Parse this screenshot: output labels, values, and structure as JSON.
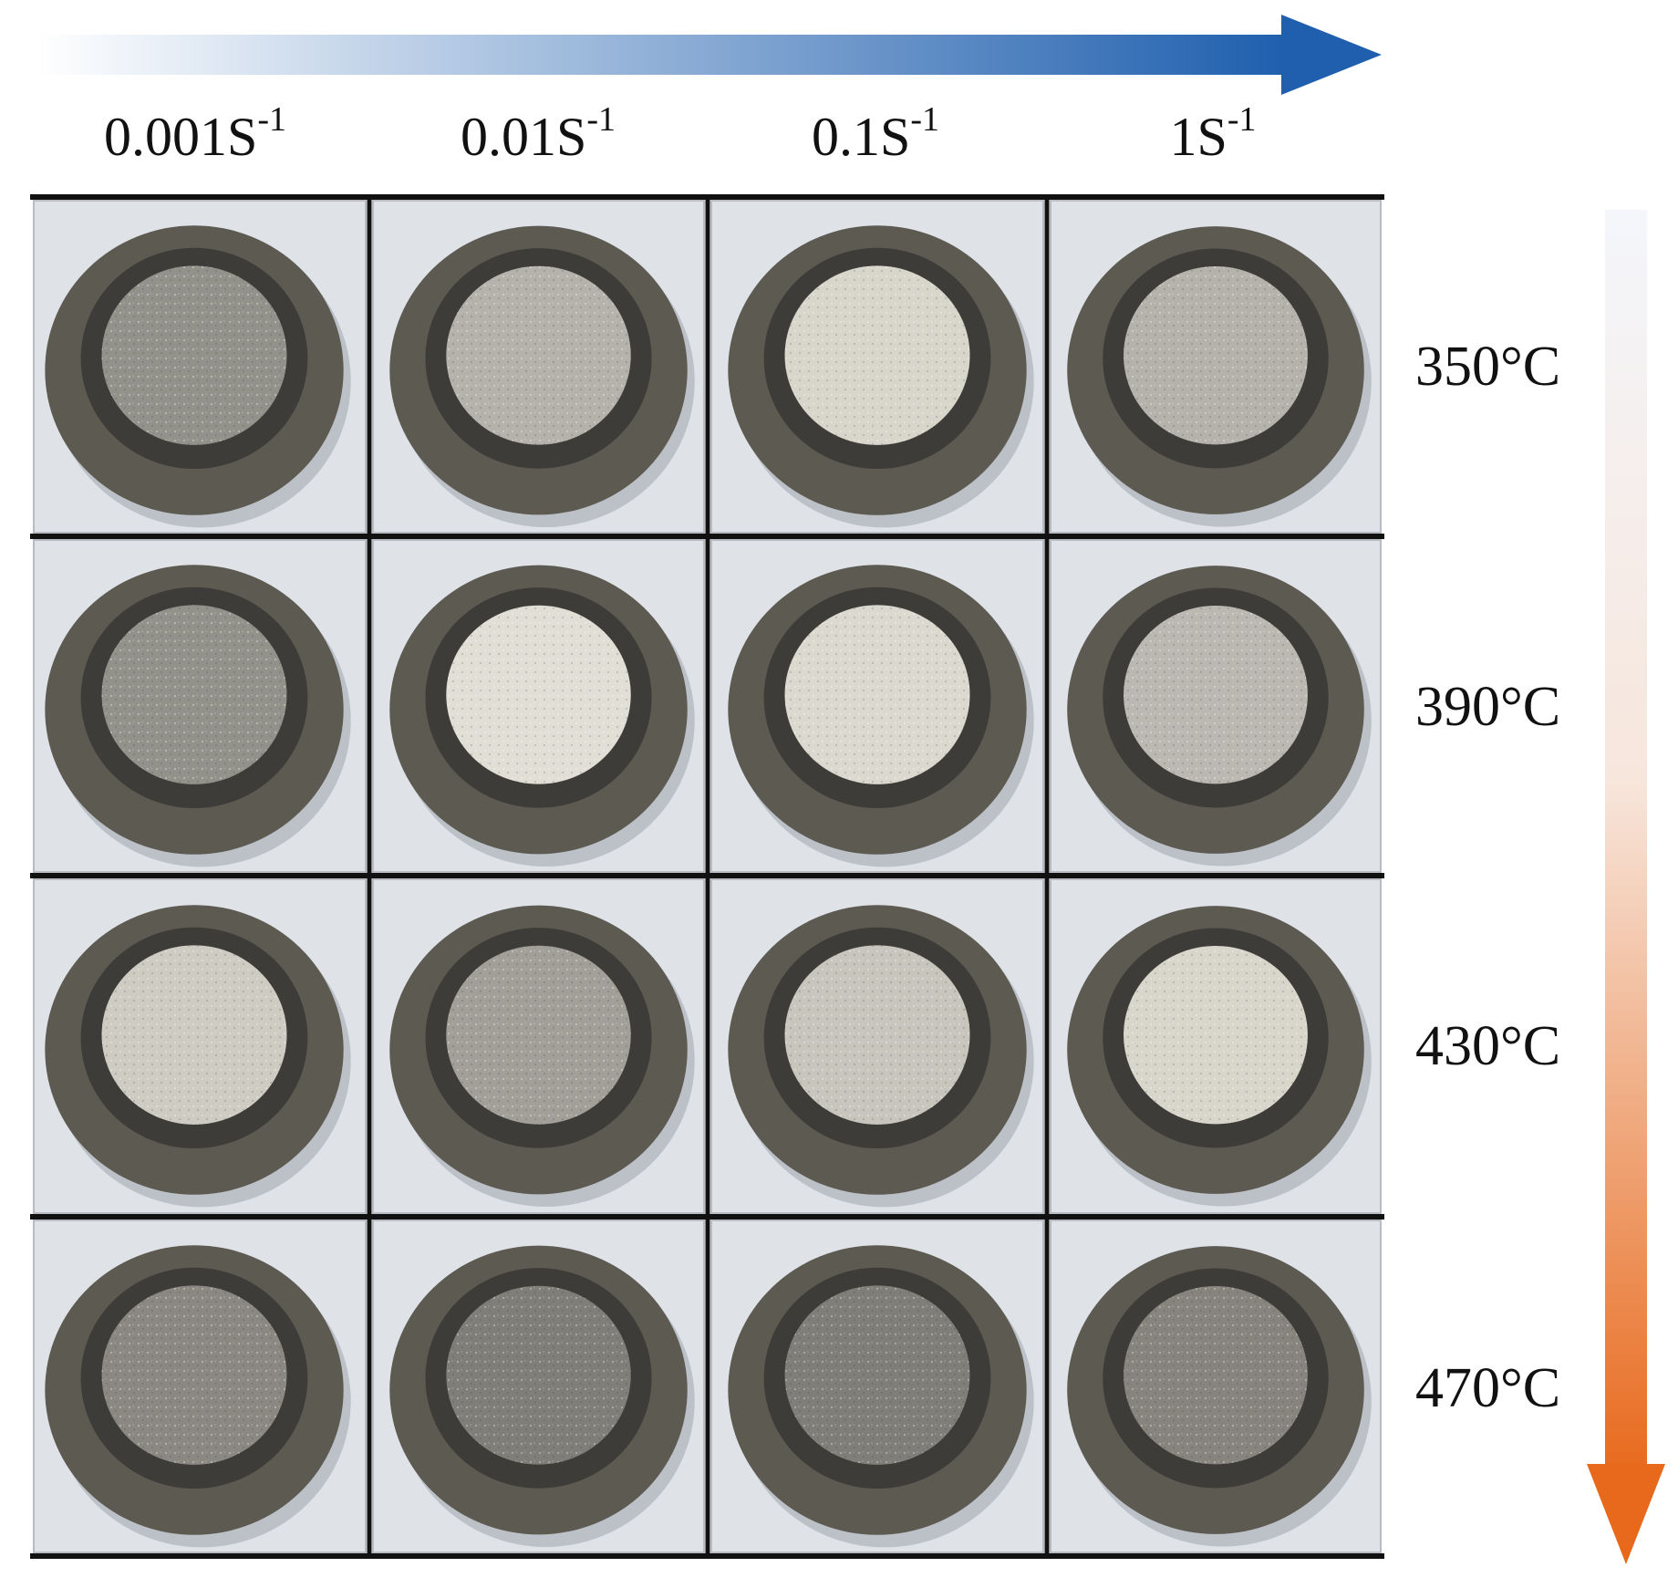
{
  "figure": {
    "horizontal_arrow": {
      "colors": [
        "#ffffff",
        "#1f5fae"
      ]
    },
    "vertical_arrow": {
      "colors": [
        "#f4f6fb",
        "#e8691c"
      ]
    },
    "strain_rates": [
      {
        "base": "0.001S",
        "exp": "-1"
      },
      {
        "base": "0.01S",
        "exp": "-1"
      },
      {
        "base": "0.1S",
        "exp": "-1"
      },
      {
        "base": "1S",
        "exp": "-1"
      }
    ],
    "temperatures": [
      "350°C",
      "390°C",
      "430°C",
      "470°C"
    ],
    "samples": [
      [
        "sample-photo",
        "sample-photo",
        "sample-photo",
        "sample-photo"
      ],
      [
        "sample-photo",
        "sample-photo",
        "sample-photo",
        "sample-photo"
      ],
      [
        "sample-photo",
        "sample-photo",
        "sample-photo",
        "sample-photo"
      ],
      [
        "sample-photo",
        "sample-photo",
        "sample-photo",
        "sample-photo"
      ]
    ],
    "sample_brightness": [
      [
        0.55,
        0.72,
        0.9,
        0.72
      ],
      [
        0.55,
        0.95,
        0.92,
        0.75
      ],
      [
        0.85,
        0.62,
        0.82,
        0.9
      ],
      [
        0.5,
        0.45,
        0.45,
        0.48
      ]
    ]
  }
}
